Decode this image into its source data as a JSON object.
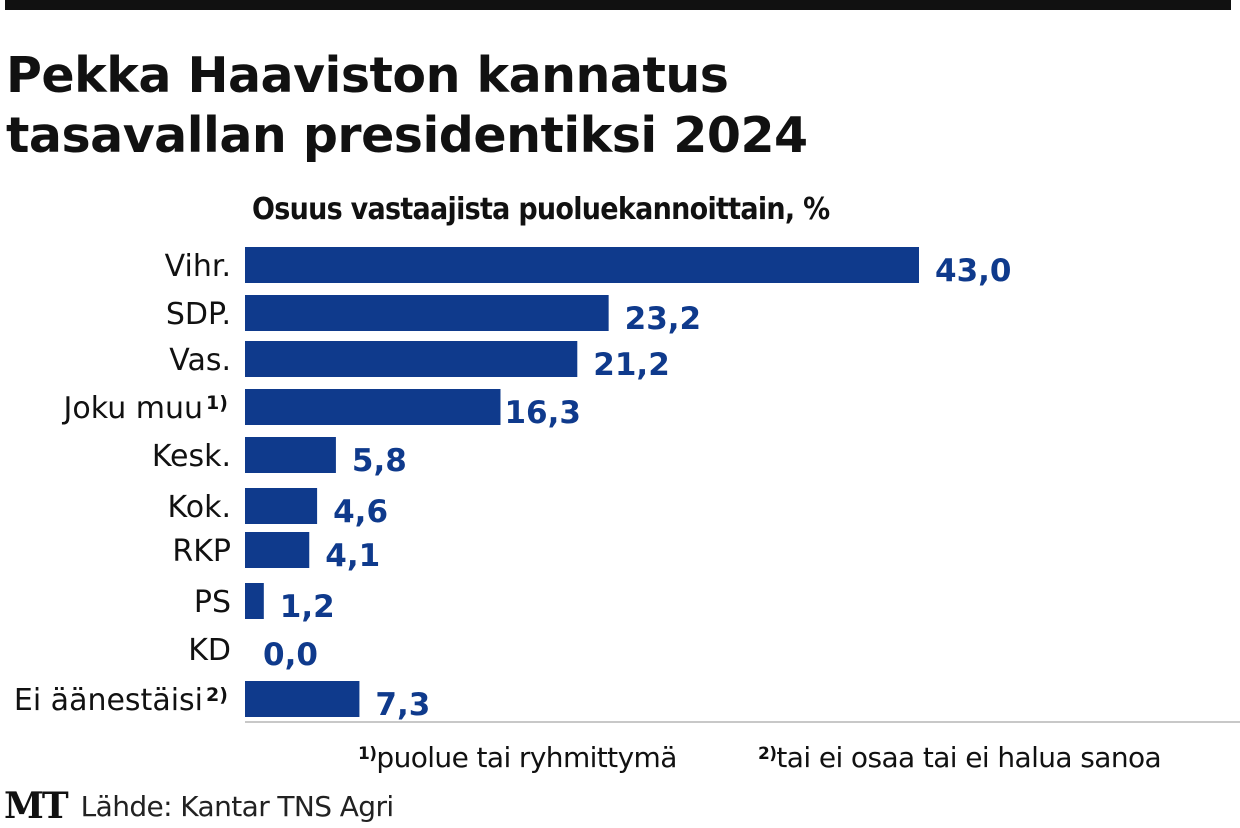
{
  "header": {
    "title_line1": "Pekka Haaviston kannatus",
    "title_line2": "tasavallan presidentiksi 2024"
  },
  "footnotes": {
    "note1_marker": "1)",
    "note1_text": "puolue tai ryhmittymä",
    "note2_marker": "2)",
    "note2_text": "tai ei osaa tai ei halua sanoa"
  },
  "source": {
    "logo": "MT",
    "text": "Lähde: Kantar TNS Agri"
  },
  "chart_data": {
    "type": "bar",
    "orientation": "horizontal",
    "title": "Pekka Haaviston kannatus tasavallan presidentiksi 2024",
    "subtitle": "Osuus vastaajista puoluekannoittain, %",
    "xlabel": "",
    "ylabel": "",
    "xlim": [
      0,
      43
    ],
    "grid": false,
    "legend": "none",
    "bar_color": "#0f3a8c",
    "label_color": "#0f3a8c",
    "categories": [
      "Vihr.",
      "SDP.",
      "Vas.",
      "Joku muu",
      "Kesk.",
      "Kok.",
      "RKP",
      "PS",
      "KD",
      "Ei äänestäisi"
    ],
    "category_footnotes": [
      "",
      "",
      "",
      "1)",
      "",
      "",
      "",
      "",
      "",
      "2)"
    ],
    "values": [
      43.0,
      23.2,
      21.2,
      16.3,
      5.8,
      4.6,
      4.1,
      1.2,
      0.0,
      7.3
    ],
    "value_labels": [
      "43,0",
      "23,2",
      "21,2",
      "16,3",
      "5,8",
      "4,6",
      "4,1",
      "1,2",
      "0,0",
      "7,3"
    ]
  }
}
